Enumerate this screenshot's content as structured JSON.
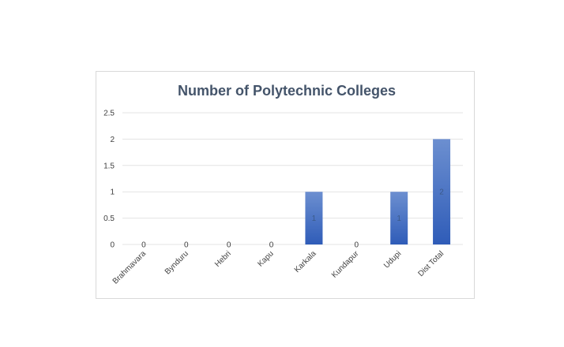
{
  "chart_data": {
    "type": "bar",
    "title": "Number of Polytechnic Colleges",
    "categories": [
      "Brahmavara",
      "Bynduru",
      "Hebri",
      "Kapu",
      "Karkala",
      "Kundapur",
      "Udupi",
      "Dist Total"
    ],
    "values": [
      0,
      0,
      0,
      0,
      1,
      0,
      1,
      2
    ],
    "data_labels": [
      "0",
      "0",
      "0",
      "0",
      "1",
      "0",
      "1",
      "2"
    ],
    "ylim": [
      0,
      2.5
    ],
    "yticks": [
      "0",
      "0.5",
      "1",
      "1.5",
      "2",
      "2.5"
    ],
    "grid": true,
    "legend": "none",
    "colors": {
      "bar_top": "#6c8fd0",
      "bar_bottom": "#2f5cb8",
      "title": "#44546a"
    }
  }
}
